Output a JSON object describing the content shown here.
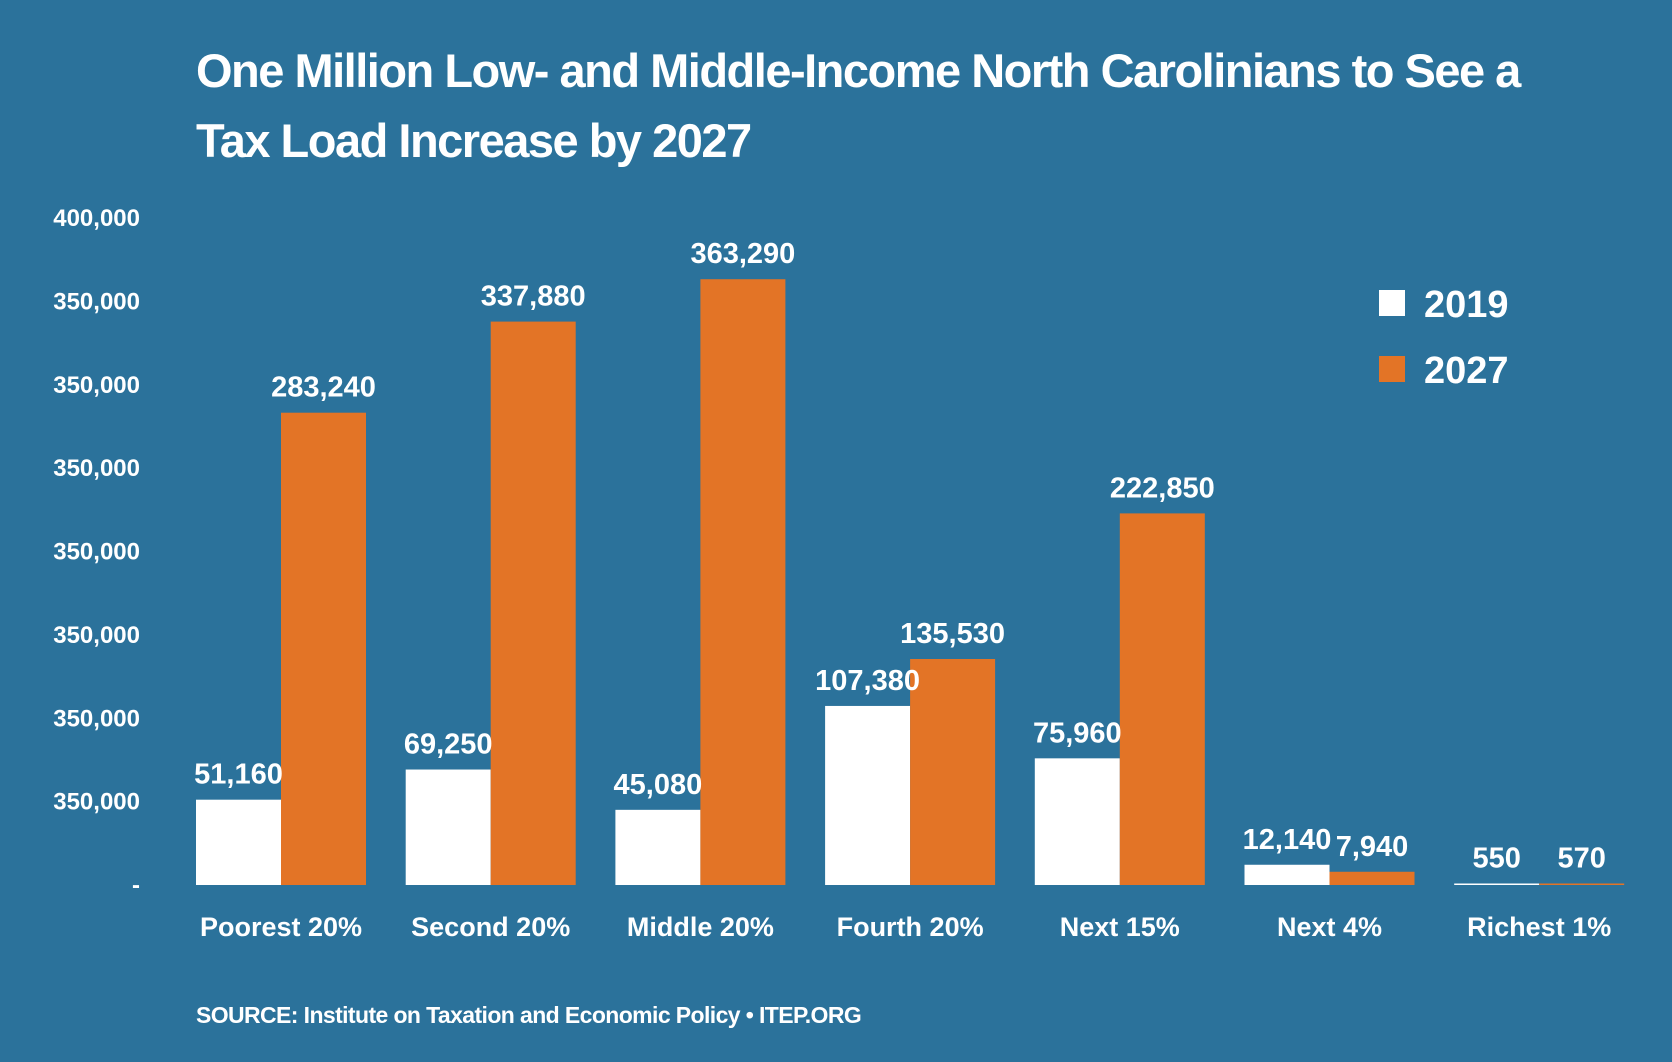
{
  "title": "One Million Low- and Middle-Income North Carolinians to See a Tax Load Increase by 2027",
  "source": "SOURCE: Institute on Taxation and Economic Policy  •  ITEP.ORG",
  "colors": {
    "background": "#2b729b",
    "series_2019": "#ffffff",
    "series_2027": "#e37426"
  },
  "chart_data": {
    "type": "bar",
    "categories": [
      "Poorest 20%",
      "Second 20%",
      "Middle 20%",
      "Fourth 20%",
      "Next 15%",
      "Next 4%",
      "Richest 1%"
    ],
    "series": [
      {
        "name": "2019",
        "values": [
          51160,
          69250,
          45080,
          107380,
          75960,
          12140,
          550
        ],
        "labels": [
          "51,160",
          "69,250",
          "45,080",
          "107,380",
          "75,960",
          "12,140",
          "550"
        ]
      },
      {
        "name": "2027",
        "values": [
          283240,
          337880,
          363290,
          135530,
          222850,
          7940,
          570
        ],
        "labels": [
          "283,240",
          "337,880",
          "363,290",
          "135,530",
          "222,850",
          "7,940",
          "570"
        ]
      }
    ],
    "y_tick_labels": [
      "-",
      "350,000",
      "350,000",
      "350,000",
      "350,000",
      "350,000",
      "350,000",
      "350,000",
      "400,000"
    ],
    "ylim": [
      0,
      400000
    ],
    "grid": false,
    "legend_position": "top-right"
  }
}
